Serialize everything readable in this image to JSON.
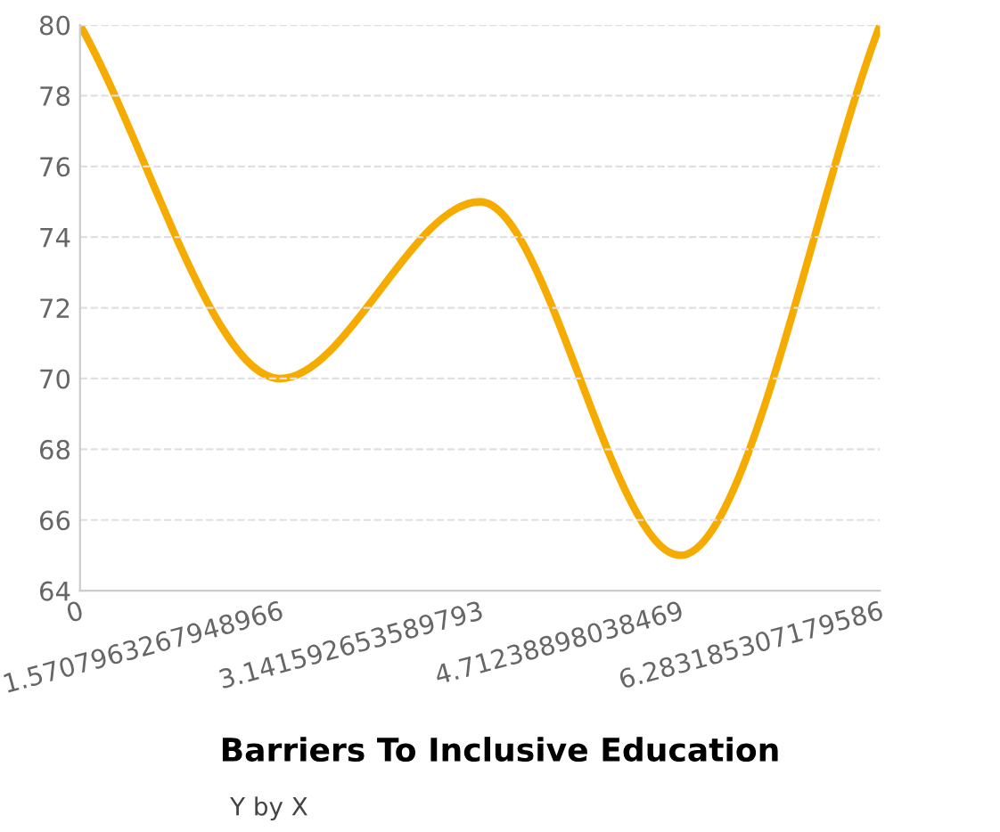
{
  "chart_data": {
    "type": "line",
    "title": "Barriers To Inclusive Education",
    "subtitle": "Y by X",
    "x": [
      0,
      1.5707963267948966,
      3.141592653589793,
      4.71238898038469,
      6.283185307179586
    ],
    "series": [
      {
        "color": "#f5ab00",
        "values": [
          80,
          70,
          75,
          65,
          80
        ]
      }
    ],
    "xlim": [
      0,
      6.283185307179586
    ],
    "xticks": [
      0,
      1.5707963267948966,
      3.141592653589793,
      4.71238898038469,
      6.283185307179586
    ],
    "ylim": [
      64,
      80
    ],
    "yticks": [
      64,
      66,
      68,
      70,
      72,
      74,
      76,
      78,
      80
    ],
    "grid": "y",
    "marker": "none",
    "line_style": "solid"
  }
}
